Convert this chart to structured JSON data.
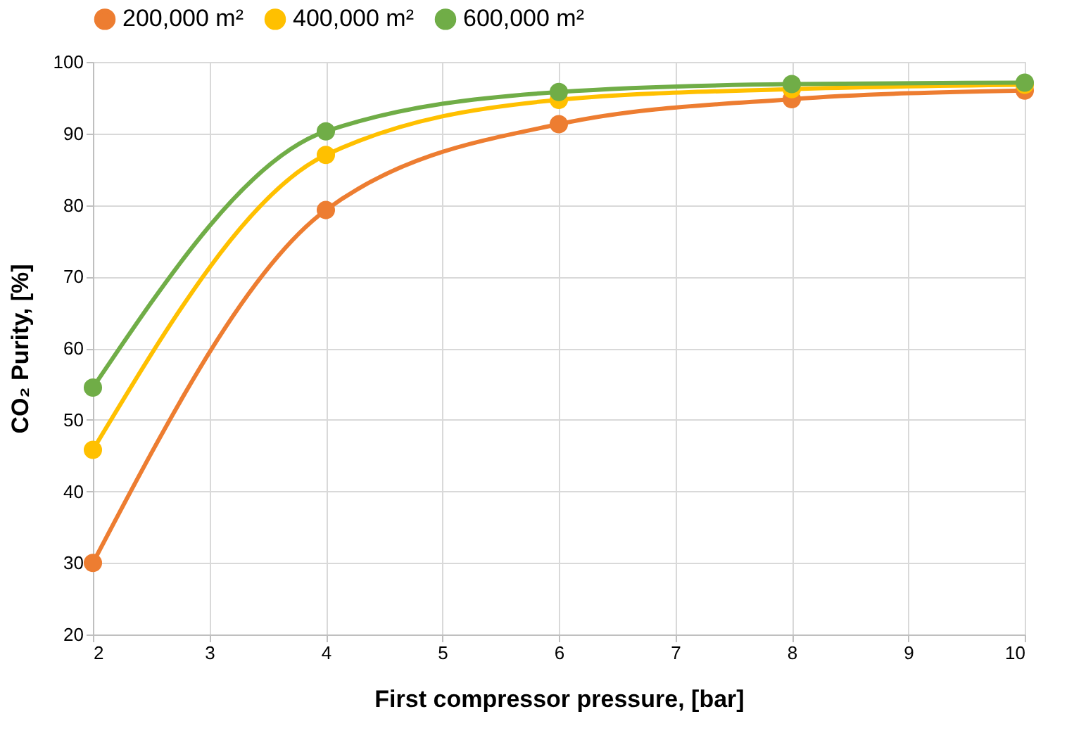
{
  "chart_data": {
    "type": "line",
    "xlabel": "First compressor pressure, [bar]",
    "ylabel": "CO₂ Purity, [%]",
    "x": [
      2,
      4,
      6,
      8,
      10
    ],
    "series": [
      {
        "name": "200,000 m²",
        "color": "#ed7d31",
        "values": [
          30,
          79.3,
          91.3,
          94.8,
          96
        ]
      },
      {
        "name": "400,000 m²",
        "color": "#ffc000",
        "values": [
          45.8,
          87,
          94.7,
          96.2,
          96.8
        ]
      },
      {
        "name": "600,000 m²",
        "color": "#70ad47",
        "values": [
          54.5,
          90.3,
          95.8,
          96.9,
          97.1
        ]
      }
    ],
    "xlim": [
      2,
      10
    ],
    "xticks": [
      2,
      3,
      4,
      5,
      6,
      7,
      8,
      9,
      10
    ],
    "ylim": [
      20,
      100
    ],
    "yticks": [
      20,
      30,
      40,
      50,
      60,
      70,
      80,
      90,
      100
    ],
    "grid": true,
    "legend": "top",
    "marker": "circle",
    "line_style": "solid"
  }
}
